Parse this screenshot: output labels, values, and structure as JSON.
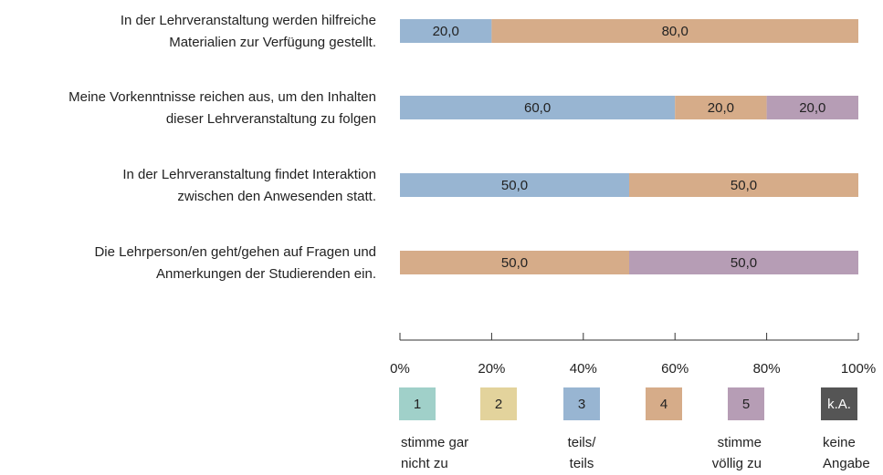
{
  "chart_data": {
    "type": "stacked-bar-horizontal",
    "categories": [
      [
        "In der Lehrveranstaltung werden hilfreiche",
        "Materialien zur Verfügung gestellt."
      ],
      [
        "Meine Vorkenntnisse reichen aus, um den Inhalten",
        "dieser Lehrveranstaltung zu folgen"
      ],
      [
        "In der Lehrveranstaltung findet Interaktion",
        "zwischen den Anwesenden statt."
      ],
      [
        "Die Lehrperson/en geht/gehen auf Fragen und",
        "Anmerkungen der Studierenden ein."
      ]
    ],
    "series": [
      {
        "name": "1",
        "color": "#a0d0c9",
        "values": [
          0,
          0,
          0,
          0
        ],
        "description": [
          "stimme gar",
          "nicht zu"
        ]
      },
      {
        "name": "2",
        "color": "#e3d39c",
        "values": [
          0,
          0,
          0,
          0
        ]
      },
      {
        "name": "3",
        "color": "#98b5d2",
        "values": [
          20,
          60,
          50,
          0
        ],
        "value_labels": [
          "20,0",
          "60,0",
          "50,0",
          null
        ],
        "description": [
          "teils/",
          "teils"
        ]
      },
      {
        "name": "4",
        "color": "#d6ac89",
        "values": [
          80,
          20,
          50,
          50
        ],
        "value_labels": [
          "80,0",
          "20,0",
          "50,0",
          "50,0"
        ]
      },
      {
        "name": "5",
        "color": "#b69db5",
        "values": [
          0,
          20,
          0,
          50
        ],
        "value_labels": [
          null,
          "20,0",
          null,
          "50,0"
        ],
        "description": [
          "stimme",
          "völlig zu"
        ]
      },
      {
        "name": "k.A.",
        "color": "#555555",
        "values": [
          0,
          0,
          0,
          0
        ],
        "description": [
          "keine",
          "Angabe"
        ]
      }
    ],
    "xlim": [
      0,
      100
    ],
    "xticks": [
      {
        "value": 0,
        "label": "0%"
      },
      {
        "value": 20,
        "label": "20%"
      },
      {
        "value": 40,
        "label": "40%"
      },
      {
        "value": 60,
        "label": "60%"
      },
      {
        "value": 80,
        "label": "80%"
      },
      {
        "value": 100,
        "label": "100%"
      }
    ]
  }
}
